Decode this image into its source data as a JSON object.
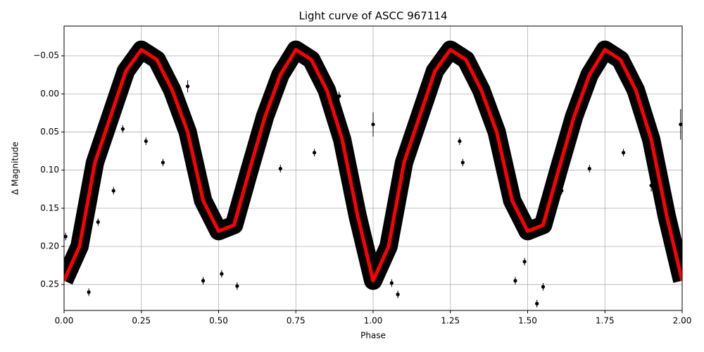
{
  "chart_data": {
    "type": "scatter",
    "title": "Light curve of ASCC 967114",
    "xlabel": "Phase",
    "ylabel": "Δ Magnitude",
    "xlim": [
      0,
      2
    ],
    "ylim": [
      0.284,
      -0.089
    ],
    "xticks": [
      {
        "value": 0,
        "label": "0.00"
      },
      0.25,
      {
        "value": 0.5,
        "label": "0.50"
      },
      0.75,
      {
        "value": 1,
        "label": "1.00"
      },
      1.25,
      {
        "value": 1.5,
        "label": "1.50"
      },
      1.75,
      {
        "value": 2,
        "label": "2.00"
      }
    ],
    "yticks": [
      {
        "value": -0.05,
        "label": "−0.05"
      },
      {
        "value": 0,
        "label": "0.00"
      },
      0.05,
      {
        "value": 0.1,
        "label": "0.10"
      },
      0.15,
      {
        "value": 0.2,
        "label": "0.20"
      },
      0.25
    ],
    "grid": true,
    "series": [
      {
        "type": "scatter",
        "color": "#000000",
        "x": [
          0.005,
          0.08,
          0.11,
          0.16,
          0.19,
          0.265,
          0.32,
          0.4,
          0.45,
          0.51,
          0.56,
          0.7,
          0.81,
          0.89,
          0.94,
          1.0,
          1.06,
          1.08,
          1.28,
          1.29,
          1.46,
          1.49,
          1.53,
          1.55,
          1.61,
          1.7,
          1.81,
          1.9,
          1.995
        ],
        "values": [
          0.187,
          0.26,
          0.168,
          0.127,
          0.046,
          0.062,
          0.09,
          -0.01,
          0.245,
          0.236,
          0.252,
          0.098,
          0.077,
          0.003,
          0.12,
          0.04,
          0.248,
          0.263,
          0.062,
          0.09,
          0.245,
          0.22,
          0.275,
          0.253,
          0.127,
          0.098,
          0.077,
          0.12,
          0.04
        ],
        "errors": [
          0.005,
          0.005,
          0.005,
          0.005,
          0.005,
          0.005,
          0.005,
          0.008,
          0.005,
          0.005,
          0.005,
          0.005,
          0.005,
          0.006,
          0.006,
          0.016,
          0.005,
          0.005,
          0.005,
          0.005,
          0.005,
          0.005,
          0.005,
          0.005,
          0.005,
          0.005,
          0.005,
          0.008,
          0.02
        ]
      },
      {
        "type": "line",
        "color": "#ff0000",
        "x": [
          0,
          0.05,
          0.1,
          0.15,
          0.2,
          0.25,
          0.3,
          0.35,
          0.4,
          0.45,
          0.5,
          0.55,
          0.6,
          0.65,
          0.7,
          0.75,
          0.8,
          0.85,
          0.9,
          0.95,
          1,
          1.05,
          1.1,
          1.15,
          1.2,
          1.25,
          1.3,
          1.35,
          1.4,
          1.45,
          1.5,
          1.55,
          1.6,
          1.65,
          1.7,
          1.75,
          1.8,
          1.85,
          1.9,
          1.95,
          2
        ],
        "values": [
          0.245,
          0.2,
          0.09,
          0.03,
          -0.03,
          -0.058,
          -0.045,
          -0.005,
          0.05,
          0.14,
          0.18,
          0.172,
          0.1,
          0.03,
          -0.025,
          -0.058,
          -0.045,
          -0.005,
          0.06,
          0.16,
          0.245,
          0.2,
          0.09,
          0.03,
          -0.03,
          -0.058,
          -0.045,
          -0.005,
          0.05,
          0.14,
          0.18,
          0.172,
          0.1,
          0.03,
          -0.025,
          -0.058,
          -0.045,
          -0.005,
          0.06,
          0.16,
          0.245
        ]
      }
    ]
  }
}
